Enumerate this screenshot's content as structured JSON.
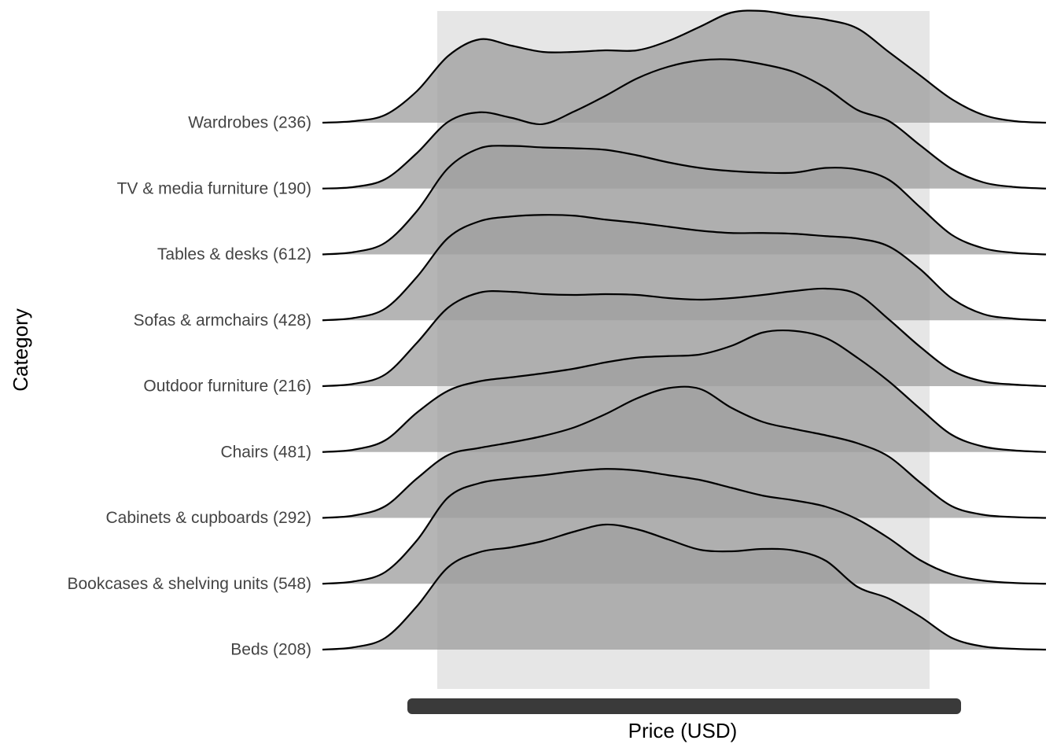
{
  "chart_data": {
    "type": "ridgeline",
    "xlabel": "Price (USD)",
    "ylabel": "Category",
    "color": "#9f9f9f",
    "x": [
      0,
      1,
      2,
      3,
      4,
      5,
      6,
      7,
      8,
      9,
      10,
      11,
      12,
      13,
      14,
      15,
      16,
      17,
      18,
      19,
      20,
      21,
      22,
      23
    ],
    "xlim": [
      0,
      23
    ],
    "series": [
      {
        "name": "Wardrobes (236)",
        "values": [
          0,
          2,
          10,
          40,
          85,
          106,
          98,
          90,
          90,
          92,
          92,
          104,
          122,
          140,
          142,
          136,
          131,
          120,
          90,
          60,
          30,
          10,
          2,
          0
        ]
      },
      {
        "name": "TV & media furniture (190)",
        "values": [
          0,
          2,
          12,
          45,
          85,
          97,
          90,
          82,
          98,
          118,
          140,
          155,
          163,
          164,
          158,
          148,
          128,
          100,
          86,
          55,
          25,
          8,
          2,
          0
        ]
      },
      {
        "name": "Tables & desks (612)",
        "values": [
          0,
          3,
          15,
          55,
          110,
          135,
          138,
          136,
          135,
          133,
          126,
          117,
          110,
          106,
          104,
          104,
          110,
          108,
          95,
          60,
          25,
          8,
          2,
          0
        ]
      },
      {
        "name": "Sofas & armchairs (428)",
        "values": [
          0,
          3,
          15,
          55,
          105,
          126,
          132,
          134,
          133,
          128,
          124,
          119,
          114,
          111,
          111,
          110,
          107,
          104,
          94,
          65,
          28,
          8,
          2,
          0
        ]
      },
      {
        "name": "Outdoor furniture (216)",
        "values": [
          0,
          3,
          15,
          55,
          100,
          119,
          120,
          117,
          116,
          117,
          116,
          112,
          110,
          112,
          116,
          121,
          124,
          117,
          85,
          50,
          20,
          6,
          2,
          0
        ]
      },
      {
        "name": "Chairs (481)",
        "values": [
          0,
          3,
          15,
          50,
          78,
          90,
          95,
          100,
          106,
          114,
          120,
          122,
          124,
          135,
          152,
          154,
          145,
          120,
          90,
          55,
          22,
          7,
          2,
          0
        ]
      },
      {
        "name": "Cabinets & cupboards (292)",
        "values": [
          0,
          3,
          15,
          50,
          80,
          89,
          96,
          104,
          115,
          132,
          152,
          165,
          164,
          140,
          122,
          113,
          105,
          95,
          78,
          45,
          15,
          4,
          1,
          0
        ]
      },
      {
        "name": "Bookcases & shelving units (548)",
        "values": [
          0,
          3,
          15,
          55,
          110,
          128,
          134,
          138,
          143,
          146,
          144,
          138,
          132,
          122,
          112,
          106,
          98,
          82,
          58,
          30,
          12,
          4,
          1,
          0
        ]
      },
      {
        "name": "Beds (208)",
        "values": [
          0,
          3,
          15,
          55,
          105,
          124,
          130,
          138,
          150,
          159,
          153,
          140,
          127,
          125,
          128,
          126,
          113,
          80,
          65,
          42,
          15,
          4,
          1,
          0
        ]
      }
    ]
  }
}
